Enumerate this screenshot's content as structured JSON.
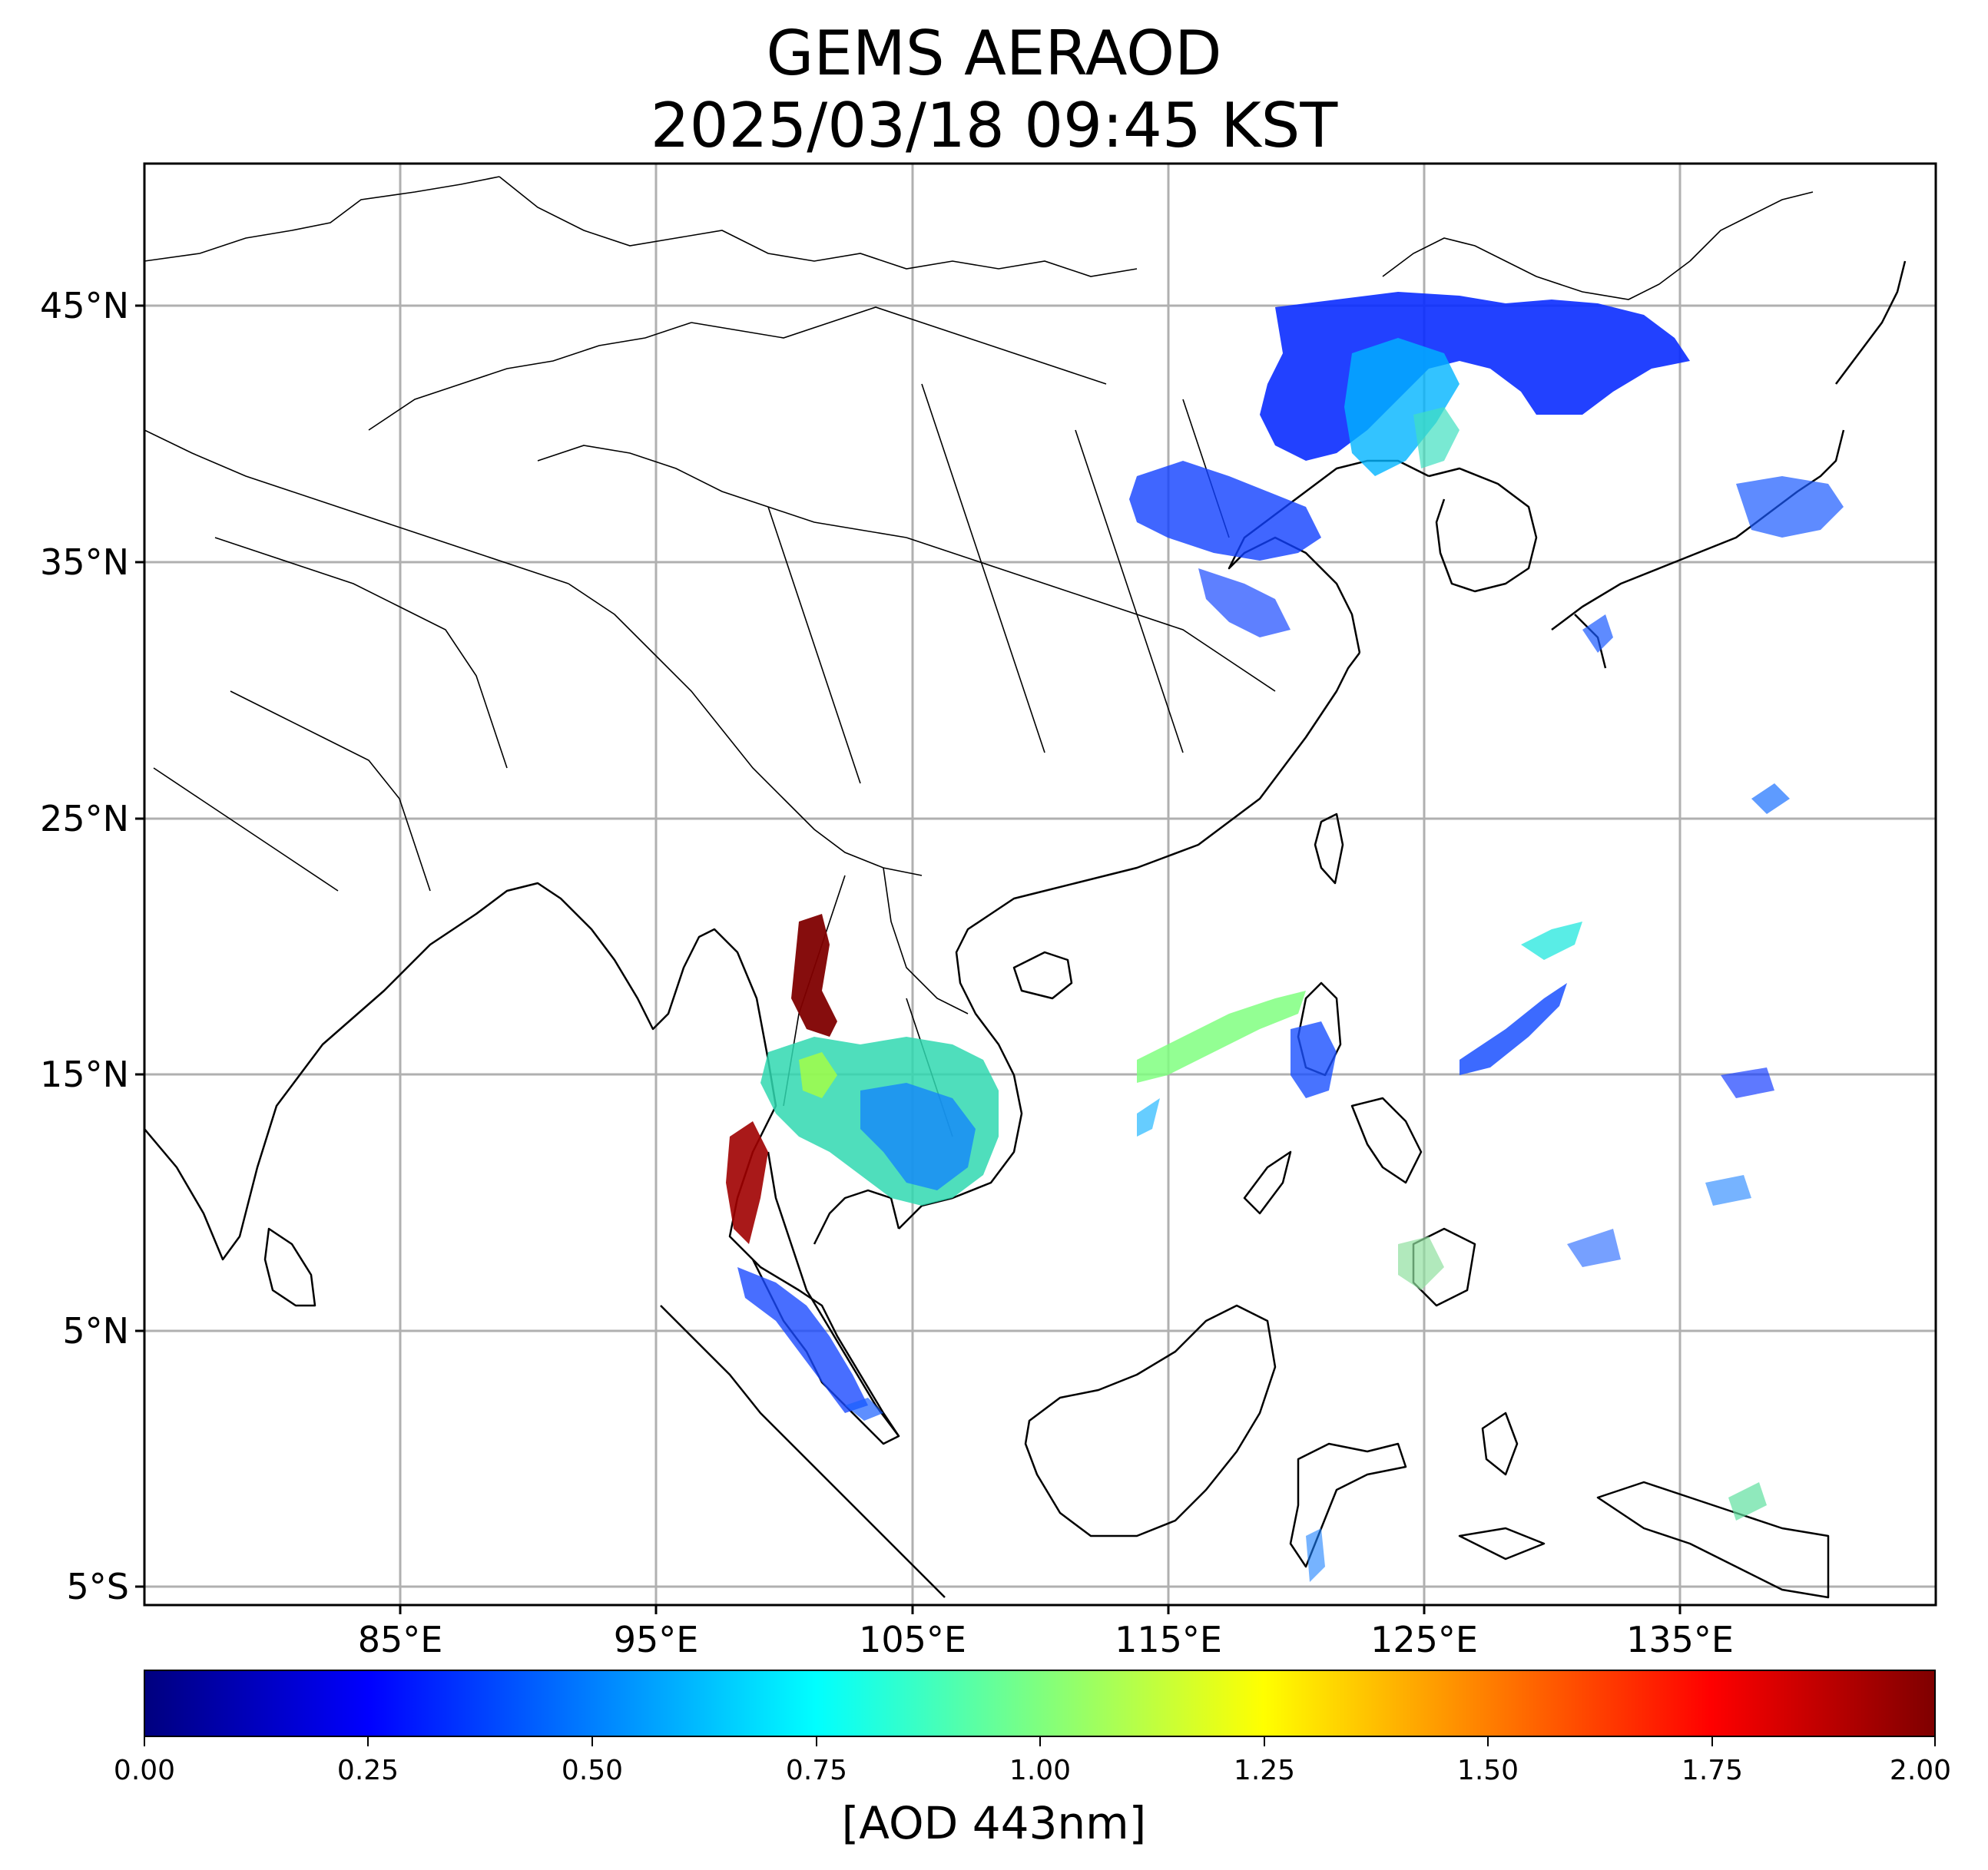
{
  "title": "GEMS AERAOD",
  "subtitle": "2025/03/18 09:45 KST",
  "latitude_labels": [
    "45°N",
    "35°N",
    "25°N",
    "15°N",
    "5°N",
    "5°S"
  ],
  "longitude_labels": [
    "85°E",
    "95°E",
    "105°E",
    "115°E",
    "125°E",
    "135°E"
  ],
  "colorbar": {
    "label": "[AOD 443nm]",
    "ticks": [
      "0.00",
      "0.25",
      "0.50",
      "0.75",
      "1.00",
      "1.25",
      "1.50",
      "1.75",
      "2.00"
    ],
    "range": [
      0,
      2
    ],
    "colormap": "jet",
    "colors": [
      "#00007f",
      "#0000ff",
      "#007fff",
      "#00ffff",
      "#7fff7f",
      "#ffff00",
      "#ff7f00",
      "#ff0000",
      "#7f0000"
    ]
  },
  "map": {
    "lon_range": [
      75,
      145
    ],
    "lat_range": [
      -6,
      50.5
    ],
    "grid": true,
    "colors": {
      "coastline": "#000000",
      "grid": "#b0b0b0",
      "background": "#ffffff"
    }
  }
}
